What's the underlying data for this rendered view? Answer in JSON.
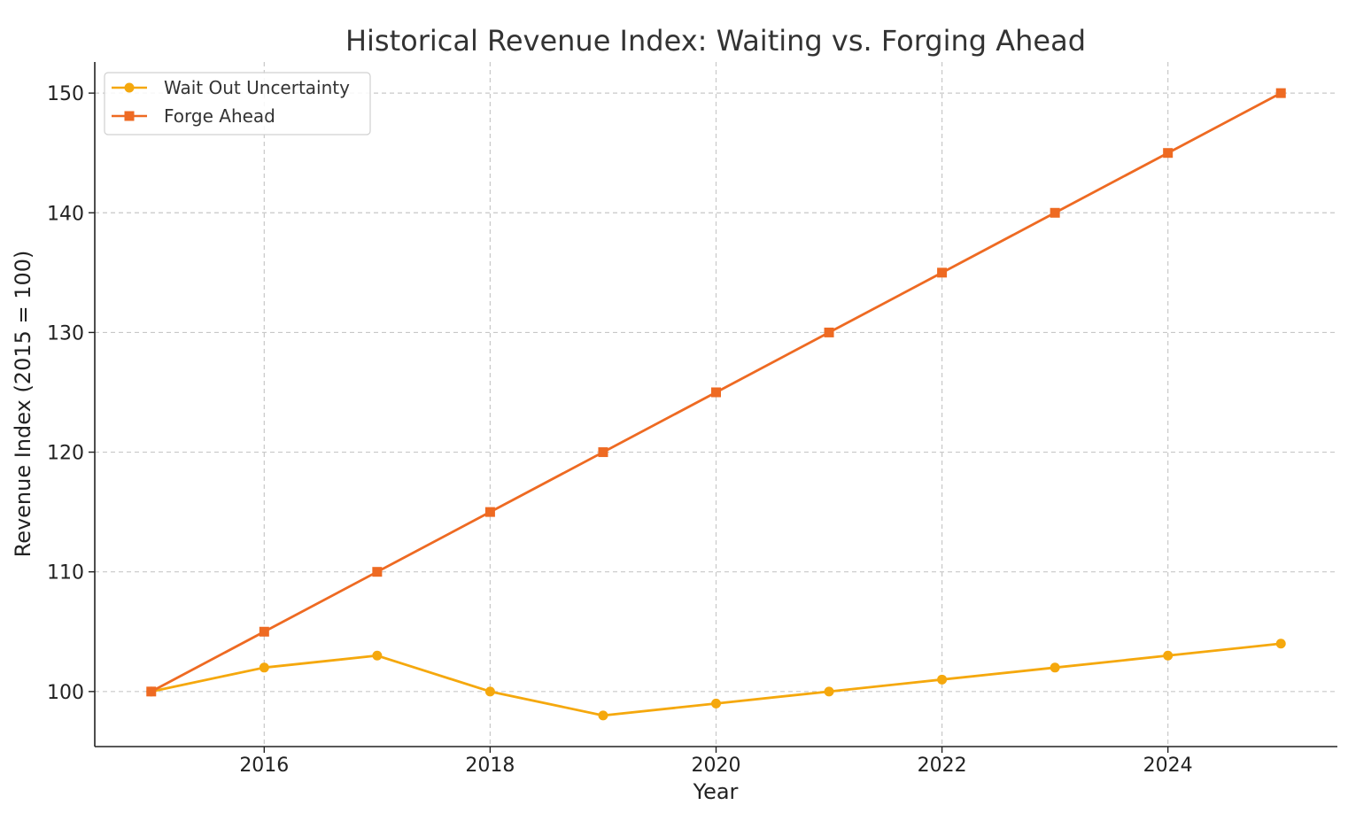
{
  "chart_data": {
    "type": "line",
    "title": "Historical Revenue Index: Waiting vs. Forging Ahead",
    "xlabel": "Year",
    "ylabel": "Revenue Index (2015 = 100)",
    "x": [
      2015,
      2016,
      2017,
      2018,
      2019,
      2020,
      2021,
      2022,
      2023,
      2024,
      2025
    ],
    "xlim": [
      2014.5,
      2025.5
    ],
    "ylim": [
      95.4,
      152.6
    ],
    "xticks": [
      "2016",
      "2018",
      "2020",
      "2022",
      "2024"
    ],
    "yticks": [
      "100",
      "110",
      "120",
      "130",
      "140",
      "150"
    ],
    "grid": true,
    "legend_position": "top-left",
    "series": [
      {
        "name": "Wait Out Uncertainty",
        "marker": "circle",
        "color": "#f5a80d",
        "values": [
          100,
          102,
          103,
          100,
          98,
          99,
          100,
          101,
          102,
          103,
          104
        ]
      },
      {
        "name": "Forge Ahead",
        "marker": "square",
        "color": "#ee6a22",
        "values": [
          100,
          105,
          110,
          115,
          120,
          125,
          130,
          135,
          140,
          145,
          150
        ]
      }
    ]
  }
}
